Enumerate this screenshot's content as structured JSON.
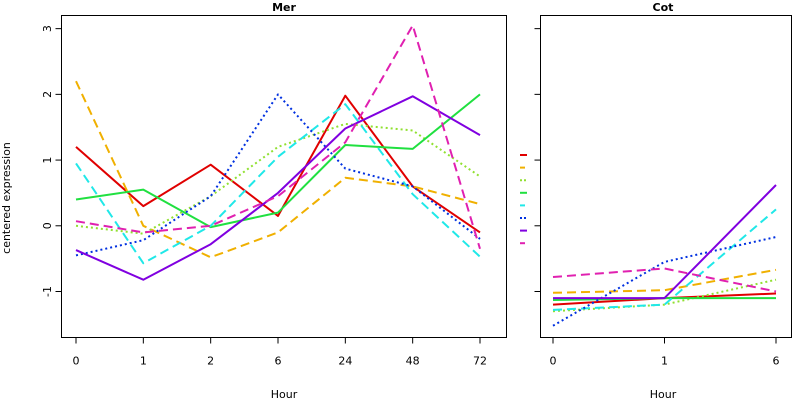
{
  "chart_data": {
    "type": "line",
    "ylabel": "centered expression",
    "ylim": [
      -1.7,
      3.2
    ],
    "yticks": [
      -1,
      0,
      1,
      2,
      3
    ],
    "series_styles": [
      {
        "color": "#e00000",
        "dash": "solid"
      },
      {
        "color": "#f0b000",
        "dash": "long"
      },
      {
        "color": "#90e030",
        "dash": "dot"
      },
      {
        "color": "#20e040",
        "dash": "solid"
      },
      {
        "color": "#20e8e8",
        "dash": "long"
      },
      {
        "color": "#0030e0",
        "dash": "dot"
      },
      {
        "color": "#8000e0",
        "dash": "solid"
      },
      {
        "color": "#e020b0",
        "dash": "long"
      }
    ],
    "panels": [
      {
        "title": "Mer",
        "xlabel": "Hour",
        "categories": [
          "0",
          "1",
          "2",
          "6",
          "24",
          "48",
          "72"
        ],
        "series": [
          {
            "values": [
              1.2,
              0.3,
              0.93,
              0.15,
              1.98,
              0.6,
              -0.1
            ]
          },
          {
            "values": [
              2.2,
              0.0,
              -0.48,
              -0.1,
              0.73,
              0.6,
              0.33
            ]
          },
          {
            "values": [
              0.0,
              -0.12,
              0.45,
              1.2,
              1.55,
              1.45,
              0.75
            ]
          },
          {
            "values": [
              0.4,
              0.55,
              -0.02,
              0.2,
              1.23,
              1.17,
              2.0
            ]
          },
          {
            "values": [
              0.95,
              -0.57,
              0.0,
              1.05,
              1.85,
              0.48,
              -0.47
            ]
          },
          {
            "values": [
              -0.45,
              -0.22,
              0.45,
              2.0,
              0.87,
              0.6,
              -0.2
            ]
          },
          {
            "values": [
              -0.37,
              -0.82,
              -0.28,
              0.5,
              1.48,
              1.97,
              1.38
            ]
          },
          {
            "values": [
              0.07,
              -0.1,
              0.0,
              0.45,
              1.27,
              3.05,
              -0.35
            ]
          }
        ]
      },
      {
        "title": "Cot",
        "xlabel": "Hour",
        "categories": [
          "0",
          "1",
          "6"
        ],
        "series": [
          {
            "values": [
              -1.2,
              -1.1,
              -1.03
            ]
          },
          {
            "values": [
              -1.02,
              -0.98,
              -0.67
            ]
          },
          {
            "values": [
              -1.3,
              -1.2,
              -0.82
            ]
          },
          {
            "values": [
              -1.13,
              -1.1,
              -1.1
            ]
          },
          {
            "values": [
              -1.28,
              -1.2,
              0.25
            ]
          },
          {
            "values": [
              -1.52,
              -0.55,
              -0.17
            ]
          },
          {
            "values": [
              -1.1,
              -1.1,
              0.62
            ]
          },
          {
            "values": [
              -0.78,
              -0.65,
              -1.0
            ]
          }
        ]
      }
    ]
  }
}
